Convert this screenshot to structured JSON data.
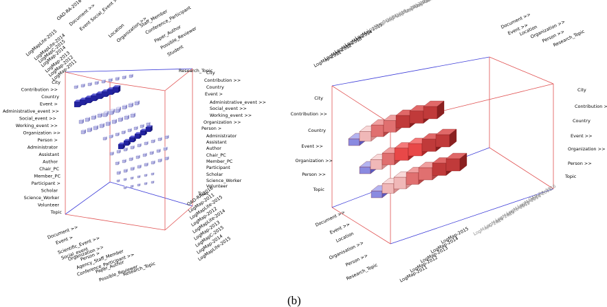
{
  "caption": "(b)",
  "left_panel": {
    "row_labels": [
      "City",
      "Contribution >>",
      "Country",
      "Event >",
      "Administrative_event >>",
      "Social_event >>",
      "Working_event >>",
      "Organization >>",
      "Person >",
      "Administrator",
      "Assistant",
      "Author",
      "Chair_PC",
      "Member_PC",
      "Participant >",
      "Scholar",
      "Science_Worker",
      "Volunteer",
      "Topic"
    ],
    "right_labels": [
      "City",
      "Contribution >>",
      "Country",
      "Event >",
      "Administrative_event >>",
      "Social_event >>",
      "Working_event >>",
      "Organization >>",
      "Person >",
      "Administrator",
      "Assistant",
      "Author",
      "Chair_PC",
      "Member_PC",
      "Participant",
      "Scholar",
      "Science_Worker",
      "Volunteer",
      "Topic"
    ],
    "top_labels": [
      "OAD-RA-2016",
      "Document >>",
      "Event Social_Event >>",
      "Location",
      "Organization >>",
      "Staff_Member",
      "Conference_Participant",
      "Paper_Author",
      "Possible_Reviewer",
      "Student",
      "Research_Topic",
      "LogMapLite-2015",
      "LogMapLite-2014",
      "LogMapC-2015",
      "LogMap-2014",
      "LogMap-2013",
      "LogMap-2012",
      "LogMap-2011"
    ],
    "bottom_left_labels": [
      "Document >>",
      "Event >",
      "Scientific_Event >>",
      "Social_event",
      "Organization >>",
      "Person >",
      "Agency_Staff_Member",
      "Conference_Participant >>",
      "Paper_Author",
      "Possible_Reviewer",
      "Research_Topic"
    ],
    "bottom_right_labels": [
      "OAD-RA-2016",
      "LogMap-2011",
      "LogMapLite-2015",
      "LogMap-2012",
      "LogMapLite-2014",
      "LogMap-2013",
      "LogMapC-2015",
      "LogMap-2014",
      "LogMapLite-2015"
    ]
  },
  "right_panel": {
    "row_labels": [
      "City",
      "Contribution >>",
      "Country",
      "Event >>",
      "Organization >>",
      "Person >>",
      "Topic"
    ],
    "right_labels": [
      "City",
      "Contribution >>",
      "Country",
      "Event >>",
      "Organization >>",
      "Person >>",
      "Topic"
    ],
    "top_dark_labels": [
      "LogMap-2011",
      "LogMap-2012",
      "LogMap-2013",
      "LogMap-2014",
      "LogMap-2015"
    ],
    "top_gray_labels": [
      "LogMapC-2014",
      "LogMapC-2015",
      "LogMapLite-2012",
      "LogMapLite-2013",
      "LogMapLite-2014",
      "LogMapLite-2015",
      "OAD-RA-2016"
    ],
    "top_right_labels": [
      "Document >>",
      "Event >>",
      "Location",
      "Organization >>",
      "Person >>",
      "Research_Topic"
    ],
    "bottom_left_labels": [
      "Document >>",
      "Event >>",
      "Location",
      "Organisation >>",
      "Person >>",
      "Research_Topic"
    ],
    "bottom_right_dark_labels": [
      "LogMap-2011",
      "LogMap-2012",
      "LogMap-2013",
      "LogMap-2014",
      "LogMap-2015"
    ],
    "bottom_right_gray_labels": [
      "LogMapC-2014",
      "LogMapC-2015",
      "LogMapLite-2012",
      "LogMapLite-2014",
      "LogMapLite-2015",
      "OAD-RA-2016"
    ]
  },
  "colors": {
    "blue_box_edge": "#3a3ad8",
    "red_box_edge": "#e05050",
    "bar_red": "#d94a4a",
    "bar_blue": "#4a4ac8"
  }
}
